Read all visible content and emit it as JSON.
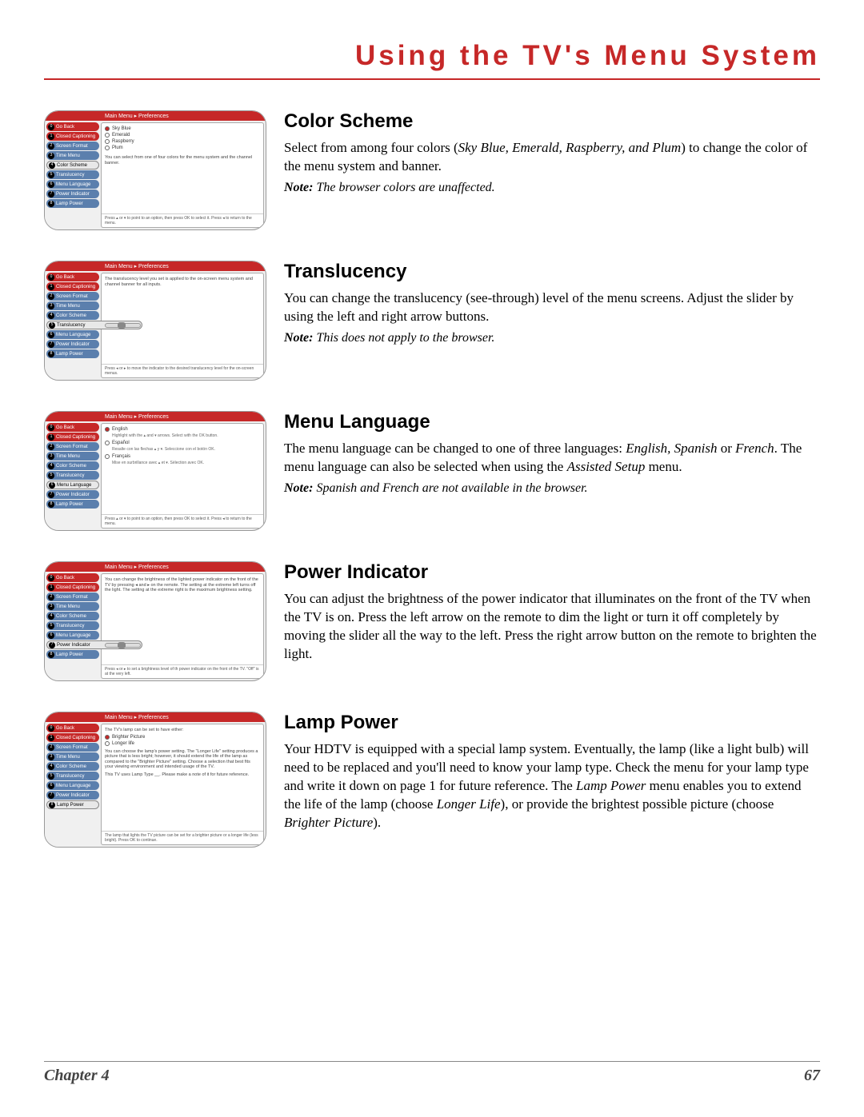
{
  "page": {
    "title": "Using the TV's Menu System",
    "chapter_label": "Chapter 4",
    "page_number": "67"
  },
  "sidebar_items": [
    {
      "num": "0",
      "label": "Go Back"
    },
    {
      "num": "1",
      "label": "Closed Captioning"
    },
    {
      "num": "2",
      "label": "Screen Format"
    },
    {
      "num": "3",
      "label": "Time Menu"
    },
    {
      "num": "4",
      "label": "Color Scheme"
    },
    {
      "num": "5",
      "label": "Translucency"
    },
    {
      "num": "6",
      "label": "Menu Language"
    },
    {
      "num": "7",
      "label": "Power Indicator"
    },
    {
      "num": "8",
      "label": "Lamp Power"
    }
  ],
  "breadcrumb": "Main Menu ▸ Preferences",
  "colors": {
    "accent": "#c62828",
    "sidebar_blue": "#5b7fad",
    "page_bg": "#ffffff",
    "shot_bg": "#f0f0f0"
  },
  "color_scheme": {
    "heading": "Color Scheme",
    "body_html": "Select from among four colors (<em>Sky Blue, Emerald, Raspberry, and Plum</em>) to change the color of the menu system and banner.",
    "note_lead": "Note:",
    "note_text": " The browser colors are unaffected.",
    "options": [
      "Sky Blue",
      "Emerald",
      "Raspberry",
      "Plum"
    ],
    "desc": "You can select from one of four colors for the menu system and the channel banner.",
    "footer": "Press ▴ or ▾ to point to an option, then press OK to select it. Press ◂ to return to the menu.",
    "selected_index": 4
  },
  "translucency": {
    "heading": "Translucency",
    "body_html": "You can change the translucency (see-through) level of the menu screens. Adjust the slider by using the left and right arrow buttons.",
    "note_lead": "Note:",
    "note_text": " This does not apply to the browser.",
    "desc": "The translucency level you set is applied to the on-screen menu system and channel banner for all inputs.",
    "footer": "Press ◂ or ▸ to move the indicator to the desired translucency level for the on-screen menus.",
    "selected_index": 5
  },
  "menu_language": {
    "heading": "Menu Language",
    "body_html": "The menu language can be changed to one of three languages: <em>English, Spanish</em> or <em>French</em>. The menu language can also be selected when using the <em>Assisted Setup</em> menu.",
    "note_lead": "Note:",
    "note_text": " Spanish and French are not available in the browser.",
    "options": [
      {
        "label": "English",
        "sub": "Highlight with the ▴ and ▾ arrows. Select with the OK button."
      },
      {
        "label": "Español",
        "sub": "Resalte con las flechas ▴ y ▾. Seleccione con el botón OK."
      },
      {
        "label": "Français",
        "sub": "Mise en surbrillance avec ▴ et ▾. Sélection avec OK."
      }
    ],
    "footer": "Press ▴ or ▾ to point to an option, then press OK to select it. Press ◂ to return to the menu.",
    "selected_index": 6
  },
  "power_indicator": {
    "heading": "Power Indicator",
    "body_html": "You can adjust the brightness of the power indicator that illuminates on the front of the TV when the TV is on. Press the left arrow on the remote to dim the light or turn it off completely by moving the slider all the way to the left. Press the right arrow button on the remote to brighten the light.",
    "desc": "You can change the brightness of the lighted power indicator on the front of the TV by pressing ◂ and ▸ on the remote. The setting at the extreme left turns off the light. The setting at the extreme right is the maximum brightness setting.",
    "footer": "Press ◂ or ▸ to set a brightness level of th power indicator on the front of the TV. \"Off\" is at the very left.",
    "selected_index": 7
  },
  "lamp_power": {
    "heading": "Lamp Power",
    "body_html": "Your HDTV is equipped with a special lamp system. Eventually, the lamp (like a light bulb) will need to be replaced and you'll need to know your lamp type. Check the menu for your lamp type and write it down on page 1 for future reference. The <em>Lamp Power</em> menu enables you to extend the life of the lamp (choose <em>Longer Life</em>), or provide the brightest possible picture (choose <em>Brighter Picture</em>).",
    "desc1": "The TV's lamp can be set to have either:",
    "options": [
      "Brighter Picture",
      "Longer life"
    ],
    "desc2": "You can choose the lamp's power setting. The \"Longer Life\" setting produces a picture that is less bright; however, it should extend the life of the lamp as compared to the \"Brighter Picture\" setting. Choose a selection that best fits your viewing environment and intended usage of the TV.",
    "desc3": "This TV uses Lamp Type __. Please make a note of it for future reference.",
    "footer": "The lamp that lights the TV picture can be set for a brighter picture or a longer life (less bright). Press OK to continue.",
    "selected_index": 8
  }
}
